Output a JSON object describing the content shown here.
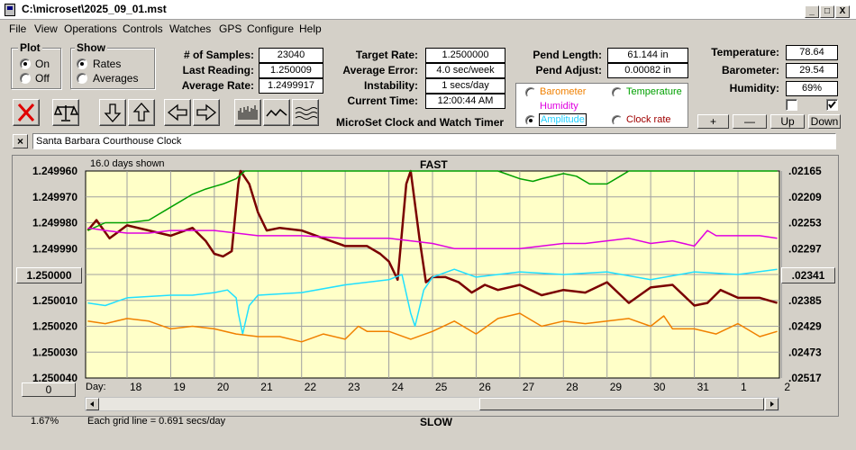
{
  "window": {
    "title": "C:\\microset\\2025_09_01.mst",
    "minimize": "_",
    "maximize": "□",
    "close": "X"
  },
  "menu": [
    "File",
    "View",
    "Operations",
    "Controls",
    "Watches",
    "GPS",
    "Configure",
    "Help"
  ],
  "plot_group": {
    "title": "Plot",
    "options": [
      "On",
      "Off"
    ],
    "selected": "On"
  },
  "show_group": {
    "title": "Show",
    "options": [
      "Rates",
      "Averages"
    ],
    "selected": "Rates"
  },
  "stats": {
    "samples_label": "# of Samples:",
    "samples": "23040",
    "last_label": "Last Reading:",
    "last": "1.250009",
    "avg_label": "Average Rate:",
    "avg": "1.2499917",
    "target_label": "Target Rate:",
    "target": "1.2500000",
    "err_label": "Average Error:",
    "err": "4.0 sec/week",
    "inst_label": "Instability:",
    "inst": "1 secs/day",
    "time_label": "Current Time:",
    "time": "12:00:44 AM",
    "pend_len_label": "Pend Length:",
    "pend_len": "61.144 in",
    "pend_adj_label": "Pend Adjust:",
    "pend_adj": "0.00082 in",
    "temp_label": "Temperature:",
    "temp": "78.64",
    "baro_label": "Barometer:",
    "baro": "29.54",
    "hum_label": "Humidity:",
    "hum": "69%"
  },
  "brand": "MicroSet Clock and Watch Timer",
  "series_selector": {
    "barometer": "Barometer",
    "temperature": "Temperature",
    "humidity": "Humidity",
    "amplitude": "Amplitude",
    "clockrate": "Clock rate",
    "selected": "Amplitude"
  },
  "small_buttons": {
    "plus": "+",
    "minus": "—",
    "up": "Up",
    "down": "Down"
  },
  "toolbar_icons": [
    "close-x-icon",
    "balance-scale-icon",
    "arrow-down-icon",
    "arrow-up-icon",
    "arrow-left-icon",
    "arrow-right-icon",
    "bars-icon",
    "wave-icon",
    "multi-wave-icon"
  ],
  "clock_name": "Santa Barbara Courthouse Clock",
  "clear_button": "×",
  "chart_labels": {
    "days_shown": "16.0 days shown",
    "fast": "FAST",
    "slow": "SLOW",
    "grid_note": "Each grid line = 0.691 secs/day",
    "percent": "1.67%",
    "day_label": "Day:",
    "center_left": "1.250000",
    "center_right": ".02341",
    "zero_button": "0"
  },
  "colors": {
    "plot_bg": "#ffffc8",
    "clock_rate": "#7a0000",
    "temperature": "#00a000",
    "humidity": "#e000e0",
    "amplitude": "#20e0ff",
    "barometer": "#f08000"
  },
  "chart_data": {
    "type": "line",
    "title": "FAST",
    "x_label": "Day:",
    "x_ticks": [
      "18",
      "19",
      "20",
      "21",
      "22",
      "23",
      "24",
      "25",
      "26",
      "27",
      "28",
      "29",
      "30",
      "31",
      "1",
      "2"
    ],
    "y_left_ticks": [
      "1.249960",
      "1.249970",
      "1.249980",
      "1.249990",
      "1.250000",
      "1.250010",
      "1.250020",
      "1.250030",
      "1.250040"
    ],
    "y_right_ticks": [
      ".02165",
      ".02209",
      ".02253",
      ".02297",
      ".02341",
      ".02385",
      ".02429",
      ".02473",
      ".02517"
    ],
    "ylim_left": [
      1.24996,
      1.25004
    ],
    "ylim_right": [
      0.02165,
      0.02517
    ],
    "grid": true,
    "series": [
      {
        "name": "Clock rate",
        "color": "#7a0000",
        "x": [
          17.1,
          17.3,
          17.6,
          18.0,
          18.5,
          19.0,
          19.5,
          19.8,
          20.0,
          20.2,
          20.4,
          20.55,
          20.6,
          20.8,
          21.0,
          21.2,
          21.5,
          22.0,
          22.5,
          23.0,
          23.5,
          23.8,
          24.0,
          24.2,
          24.4,
          24.5,
          24.7,
          24.85,
          25.0,
          25.3,
          25.6,
          25.9,
          26.2,
          26.5,
          27.0,
          27.5,
          28.0,
          28.5,
          29.0,
          29.5,
          30.0,
          30.5,
          31.0,
          31.3,
          31.6,
          32.0,
          32.5,
          32.9
        ],
        "y": [
          1.249983,
          1.249979,
          1.249986,
          1.249981,
          1.249983,
          1.249985,
          1.249982,
          1.249987,
          1.249992,
          1.249993,
          1.249991,
          1.249965,
          1.24996,
          1.249965,
          1.249976,
          1.249983,
          1.249982,
          1.249983,
          1.249986,
          1.249989,
          1.249989,
          1.249992,
          1.249995,
          1.250002,
          1.249965,
          1.24996,
          1.249986,
          1.250003,
          1.250001,
          1.250001,
          1.250003,
          1.250007,
          1.250004,
          1.250006,
          1.250004,
          1.250008,
          1.250006,
          1.250007,
          1.250003,
          1.250011,
          1.250005,
          1.250004,
          1.250012,
          1.250011,
          1.250006,
          1.250009,
          1.250009,
          1.250011
        ]
      },
      {
        "name": "Temperature",
        "color": "#00a000",
        "x": [
          17.1,
          17.5,
          18.0,
          18.5,
          19.0,
          19.5,
          19.8,
          20.0,
          20.2,
          20.5,
          20.7,
          21.0,
          22.0,
          23.0,
          24.0,
          24.5,
          25.0,
          25.5,
          26.0,
          26.5,
          27.0,
          27.3,
          27.5,
          28.0,
          28.3,
          28.6,
          29.0,
          29.3,
          29.5,
          30.0,
          31.0,
          32.0,
          32.9
        ],
        "y": [
          1.249983,
          1.24998,
          1.24998,
          1.249979,
          1.249974,
          1.249969,
          1.249967,
          1.249966,
          1.249965,
          1.249963,
          1.24996,
          1.24996,
          1.24996,
          1.24996,
          1.24996,
          1.24996,
          1.24996,
          1.24996,
          1.24996,
          1.24996,
          1.249963,
          1.249964,
          1.249963,
          1.249961,
          1.249962,
          1.249965,
          1.249965,
          1.249962,
          1.24996,
          1.24996,
          1.24996,
          1.24996,
          1.24996
        ]
      },
      {
        "name": "Humidity",
        "color": "#e000e0",
        "x": [
          17.1,
          17.5,
          18.0,
          18.5,
          19.0,
          19.5,
          20.0,
          20.5,
          21.0,
          22.0,
          23.0,
          24.0,
          24.5,
          25.0,
          25.5,
          26.0,
          27.0,
          27.5,
          28.0,
          28.5,
          29.0,
          29.5,
          30.0,
          30.5,
          31.0,
          31.3,
          31.5,
          32.0,
          32.5,
          32.9
        ],
        "y": [
          1.249982,
          1.249983,
          1.249984,
          1.249984,
          1.249983,
          1.249983,
          1.249983,
          1.249984,
          1.249985,
          1.249985,
          1.249986,
          1.249986,
          1.249987,
          1.249988,
          1.24999,
          1.24999,
          1.24999,
          1.249989,
          1.249988,
          1.249988,
          1.249987,
          1.249986,
          1.249988,
          1.249987,
          1.249989,
          1.249983,
          1.249985,
          1.249985,
          1.249985,
          1.249986
        ]
      },
      {
        "name": "Amplitude",
        "color": "#20e0ff",
        "x": [
          17.1,
          17.5,
          18.0,
          19.0,
          19.5,
          20.0,
          20.3,
          20.5,
          20.55,
          20.65,
          20.8,
          21.0,
          22.0,
          23.0,
          24.0,
          24.3,
          24.5,
          24.6,
          24.8,
          25.0,
          25.5,
          26.0,
          27.0,
          28.0,
          29.0,
          30.0,
          31.0,
          32.0,
          32.9
        ],
        "y": [
          1.250011,
          1.250012,
          1.250009,
          1.250008,
          1.250008,
          1.250007,
          1.250006,
          1.250009,
          1.250015,
          1.250023,
          1.250012,
          1.250008,
          1.250007,
          1.250004,
          1.250002,
          1.25,
          1.250015,
          1.25002,
          1.250006,
          1.250001,
          1.249998,
          1.250001,
          1.249999,
          1.25,
          1.249999,
          1.250002,
          1.249999,
          1.25,
          1.249998
        ]
      },
      {
        "name": "Barometer",
        "color": "#f08000",
        "x": [
          17.1,
          17.5,
          18.0,
          18.5,
          19.0,
          19.5,
          20.0,
          20.5,
          21.0,
          21.5,
          22.0,
          22.5,
          23.0,
          23.3,
          23.5,
          24.0,
          24.5,
          25.0,
          25.5,
          26.0,
          26.5,
          27.0,
          27.5,
          28.0,
          28.5,
          29.0,
          29.5,
          30.0,
          30.3,
          30.5,
          31.0,
          31.5,
          32.0,
          32.5,
          32.9
        ],
        "y": [
          1.250018,
          1.250019,
          1.250017,
          1.250018,
          1.250021,
          1.25002,
          1.250021,
          1.250023,
          1.250024,
          1.250024,
          1.250026,
          1.250023,
          1.250025,
          1.25002,
          1.250022,
          1.250022,
          1.250025,
          1.250022,
          1.250018,
          1.250023,
          1.250017,
          1.250015,
          1.25002,
          1.250018,
          1.250019,
          1.250018,
          1.250017,
          1.25002,
          1.250016,
          1.250021,
          1.250021,
          1.250023,
          1.250019,
          1.250024,
          1.250022
        ]
      }
    ]
  }
}
